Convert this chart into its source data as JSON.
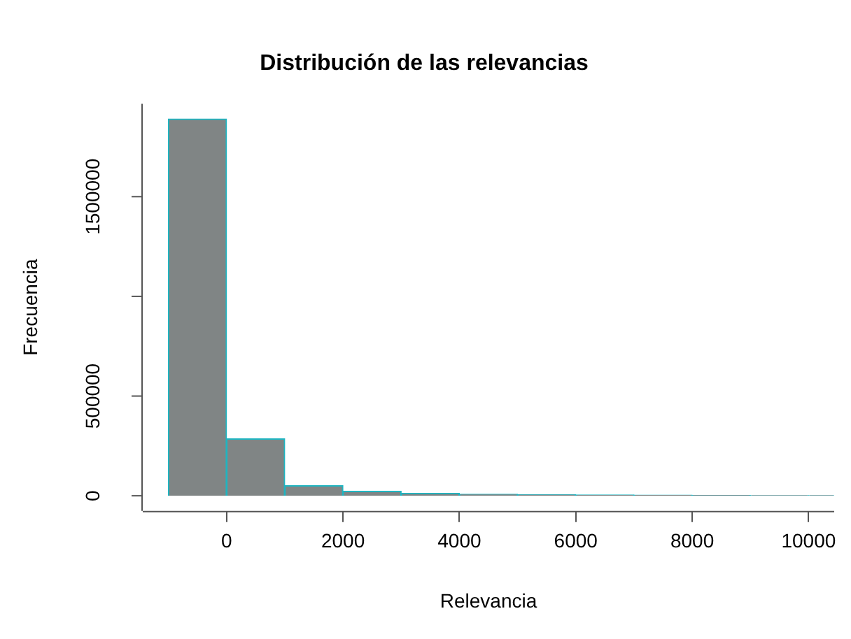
{
  "chart_data": {
    "type": "histogram",
    "title": "Distribución de las relevancias",
    "xlabel": "Relevancia",
    "ylabel": "Frecuencia",
    "bins": [
      -1000,
      0,
      1000,
      2000,
      3000,
      4000,
      5000,
      6000,
      7000,
      8000,
      9000,
      10000,
      10440
    ],
    "values": [
      1890000,
      286000,
      51000,
      23000,
      12000,
      8000,
      5000,
      4000,
      3000,
      2000,
      1000,
      1000
    ],
    "color": "#808585",
    "xlim": [
      -1440,
      10440
    ],
    "xticks": [
      0,
      2000,
      4000,
      6000,
      8000,
      10000
    ],
    "ylim": [
      -76000,
      1966000
    ],
    "yticks": [
      0,
      500000,
      {
        "value": 1000000,
        "label": null
      },
      1500000
    ]
  }
}
